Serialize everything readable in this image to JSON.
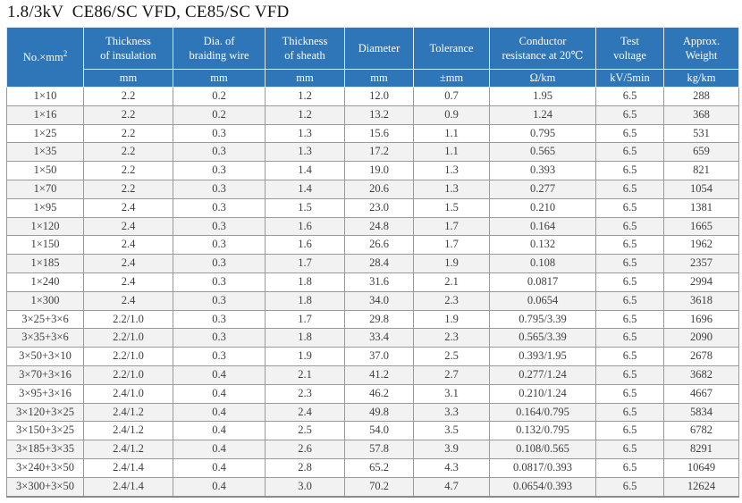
{
  "page_title": "1.8/3kV  CE86/SC VFD, CE85/SC VFD",
  "accent_color": "#2e76b8",
  "table": {
    "first_column": {
      "label": "No.×mm",
      "sup": "2"
    },
    "columns": [
      {
        "label": "Thickness of insulation",
        "lines": [
          "Thickness",
          "of insulation"
        ],
        "unit": "mm"
      },
      {
        "label": "Dia. of braiding wire",
        "lines": [
          "Dia. of",
          "braiding wire"
        ],
        "unit": "mm"
      },
      {
        "label": "Thickness of sheath",
        "lines": [
          "Thickness",
          "of sheath"
        ],
        "unit": "mm"
      },
      {
        "label": "Diameter",
        "lines": [
          "Diameter"
        ],
        "unit": "mm"
      },
      {
        "label": "Tolerance",
        "lines": [
          "Tolerance"
        ],
        "unit": "±mm"
      },
      {
        "label": "Conductor resistance at 20℃",
        "lines": [
          "Conductor",
          "resistance at 20℃"
        ],
        "unit": "Ω/km"
      },
      {
        "label": "Test voltage",
        "lines": [
          "Test",
          "voltage"
        ],
        "unit": "kV/5min"
      },
      {
        "label": "Approx. Weight",
        "lines": [
          "Approx.",
          "Weight"
        ],
        "unit": "kg/km"
      }
    ],
    "rows": [
      [
        "1×10",
        "2.2",
        "0.2",
        "1.2",
        "12.0",
        "0.7",
        "1.95",
        "6.5",
        "288"
      ],
      [
        "1×16",
        "2.2",
        "0.2",
        "1.2",
        "13.2",
        "0.9",
        "1.24",
        "6.5",
        "368"
      ],
      [
        "1×25",
        "2.2",
        "0.3",
        "1.3",
        "15.6",
        "1.1",
        "0.795",
        "6.5",
        "531"
      ],
      [
        "1×35",
        "2.2",
        "0.3",
        "1.3",
        "17.2",
        "1.1",
        "0.565",
        "6.5",
        "659"
      ],
      [
        "1×50",
        "2.2",
        "0.3",
        "1.4",
        "19.0",
        "1.3",
        "0.393",
        "6.5",
        "821"
      ],
      [
        "1×70",
        "2.2",
        "0.3",
        "1.4",
        "20.6",
        "1.3",
        "0.277",
        "6.5",
        "1054"
      ],
      [
        "1×95",
        "2.4",
        "0.3",
        "1.5",
        "23.0",
        "1.5",
        "0.210",
        "6.5",
        "1381"
      ],
      [
        "1×120",
        "2.4",
        "0.3",
        "1.6",
        "24.8",
        "1.7",
        "0.164",
        "6.5",
        "1665"
      ],
      [
        "1×150",
        "2.4",
        "0.3",
        "1.6",
        "26.6",
        "1.7",
        "0.132",
        "6.5",
        "1962"
      ],
      [
        "1×185",
        "2.4",
        "0.3",
        "1.7",
        "28.4",
        "1.9",
        "0.108",
        "6.5",
        "2357"
      ],
      [
        "1×240",
        "2.4",
        "0.3",
        "1.8",
        "31.6",
        "2.1",
        "0.0817",
        "6.5",
        "2994"
      ],
      [
        "1×300",
        "2.4",
        "0.3",
        "1.8",
        "34.0",
        "2.3",
        "0.0654",
        "6.5",
        "3618"
      ],
      [
        "3×25+3×6",
        "2.2/1.0",
        "0.3",
        "1.7",
        "29.8",
        "1.9",
        "0.795/3.39",
        "6.5",
        "1696"
      ],
      [
        "3×35+3×6",
        "2.2/1.0",
        "0.3",
        "1.8",
        "33.4",
        "2.3",
        "0.565/3.39",
        "6.5",
        "2090"
      ],
      [
        "3×50+3×10",
        "2.2/1.0",
        "0.3",
        "1.9",
        "37.0",
        "2.5",
        "0.393/1.95",
        "6.5",
        "2678"
      ],
      [
        "3×70+3×16",
        "2.2/1.0",
        "0.4",
        "2.1",
        "41.2",
        "2.7",
        "0.277/1.24",
        "6.5",
        "3682"
      ],
      [
        "3×95+3×16",
        "2.4/1.0",
        "0.4",
        "2.3",
        "46.2",
        "3.1",
        "0.210/1.24",
        "6.5",
        "4667"
      ],
      [
        "3×120+3×25",
        "2.4/1.2",
        "0.4",
        "2.4",
        "49.8",
        "3.3",
        "0.164/0.795",
        "6.5",
        "5834"
      ],
      [
        "3×150+3×25",
        "2.4/1.2",
        "0.4",
        "2.5",
        "54.0",
        "3.5",
        "0.132/0.795",
        "6.5",
        "6782"
      ],
      [
        "3×185+3×35",
        "2.4/1.2",
        "0.4",
        "2.6",
        "57.8",
        "3.9",
        "0.108/0.565",
        "6.5",
        "8291"
      ],
      [
        "3×240+3×50",
        "2.4/1.4",
        "0.4",
        "2.8",
        "65.2",
        "4.3",
        "0.0817/0.393",
        "6.5",
        "10649"
      ],
      [
        "3×300+3×50",
        "2.4/1.4",
        "0.4",
        "3.0",
        "70.2",
        "4.7",
        "0.0654/0.393",
        "6.5",
        "12624"
      ]
    ]
  }
}
